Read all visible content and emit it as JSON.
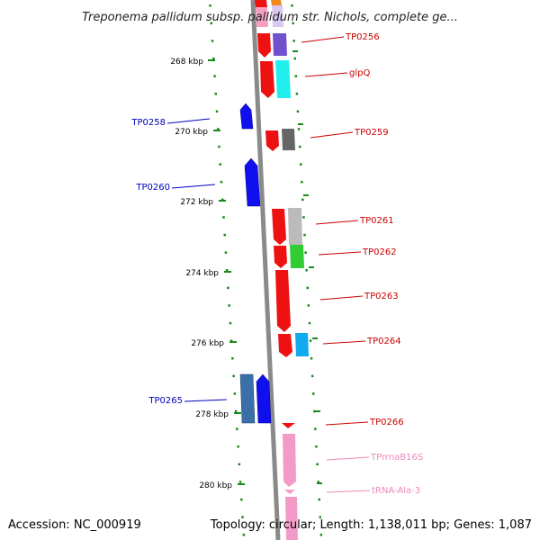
{
  "title": "Treponema pallidum subsp. pallidum str. Nichols, complete ge...",
  "footer": {
    "accession": "Accession: NC_000919",
    "topology": "Topology: circular; Length: 1,138,011 bp; Genes: 1,087"
  },
  "colors": {
    "backbone": "#888888",
    "tick": "#1a8a1a",
    "forward_label": "#cc0000",
    "reverse_label": "#0000bb",
    "rna_label": "#ee88bb"
  },
  "scale_labels": [
    "268 kbp",
    "270 kbp",
    "272 kbp",
    "274 kbp",
    "276 kbp",
    "278 kbp",
    "280 kbp"
  ],
  "gene_labels": [
    {
      "text": "TP0256",
      "strand": "forward"
    },
    {
      "text": "glpQ",
      "strand": "forward"
    },
    {
      "text": "TP0258",
      "strand": "reverse"
    },
    {
      "text": "TP0259",
      "strand": "forward"
    },
    {
      "text": "TP0260",
      "strand": "reverse"
    },
    {
      "text": "TP0261",
      "strand": "forward"
    },
    {
      "text": "TP0262",
      "strand": "forward"
    },
    {
      "text": "TP0263",
      "strand": "forward"
    },
    {
      "text": "TP0264",
      "strand": "forward"
    },
    {
      "text": "TP0265",
      "strand": "reverse"
    },
    {
      "text": "TP0266",
      "strand": "forward"
    },
    {
      "text": "TPrrnaB16S",
      "strand": "rna"
    },
    {
      "text": "tRNA-Ala-3",
      "strand": "rna"
    }
  ]
}
